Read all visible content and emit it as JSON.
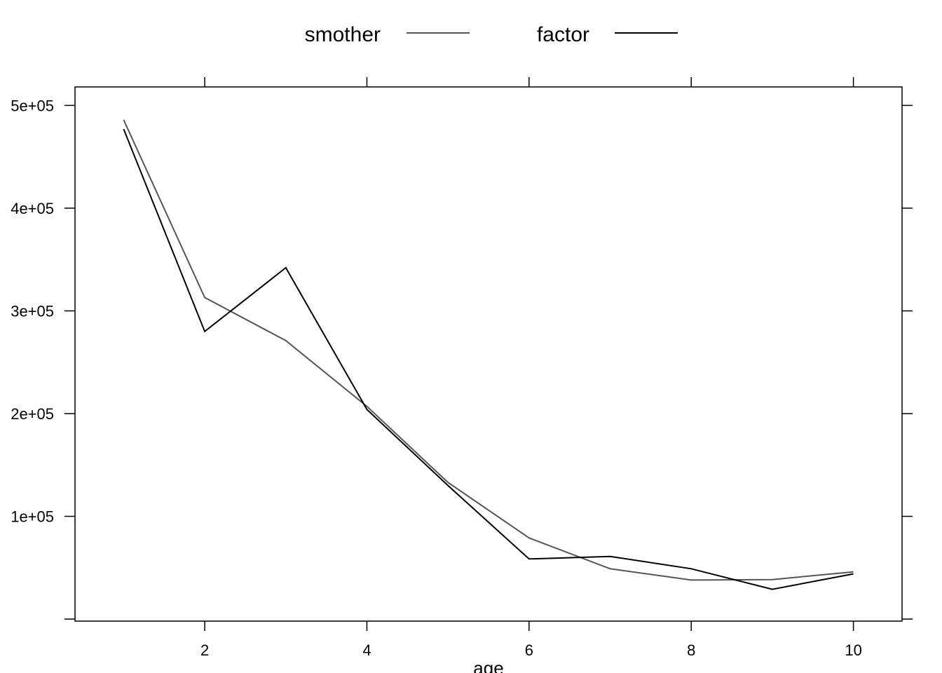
{
  "chart_data": {
    "type": "line",
    "xlabel": "age",
    "ylabel": "",
    "xlim": [
      0.4,
      10.6
    ],
    "ylim": [
      -2000,
      518000
    ],
    "x_ticks": [
      2,
      4,
      6,
      8,
      10
    ],
    "x_tick_labels": [
      "2",
      "4",
      "6",
      "8",
      "10"
    ],
    "y_ticks": [
      0,
      100000,
      200000,
      300000,
      400000,
      500000
    ],
    "y_tick_labels": [
      "",
      "1e+05",
      "2e+05",
      "3e+05",
      "4e+05",
      "5e+05"
    ],
    "grid": false,
    "legend_position": "top",
    "x": [
      1,
      2,
      3,
      4,
      5,
      6,
      7,
      8,
      9,
      10
    ],
    "series": [
      {
        "name": "smother",
        "color": "#555555",
        "values": [
          486000,
          313000,
          271000,
          207000,
          133000,
          79000,
          49000,
          38000,
          38500,
          46000
        ]
      },
      {
        "name": "factor",
        "color": "#000000",
        "values": [
          477000,
          280000,
          342000,
          204000,
          130000,
          58500,
          61000,
          49000,
          29000,
          44000
        ]
      }
    ]
  }
}
